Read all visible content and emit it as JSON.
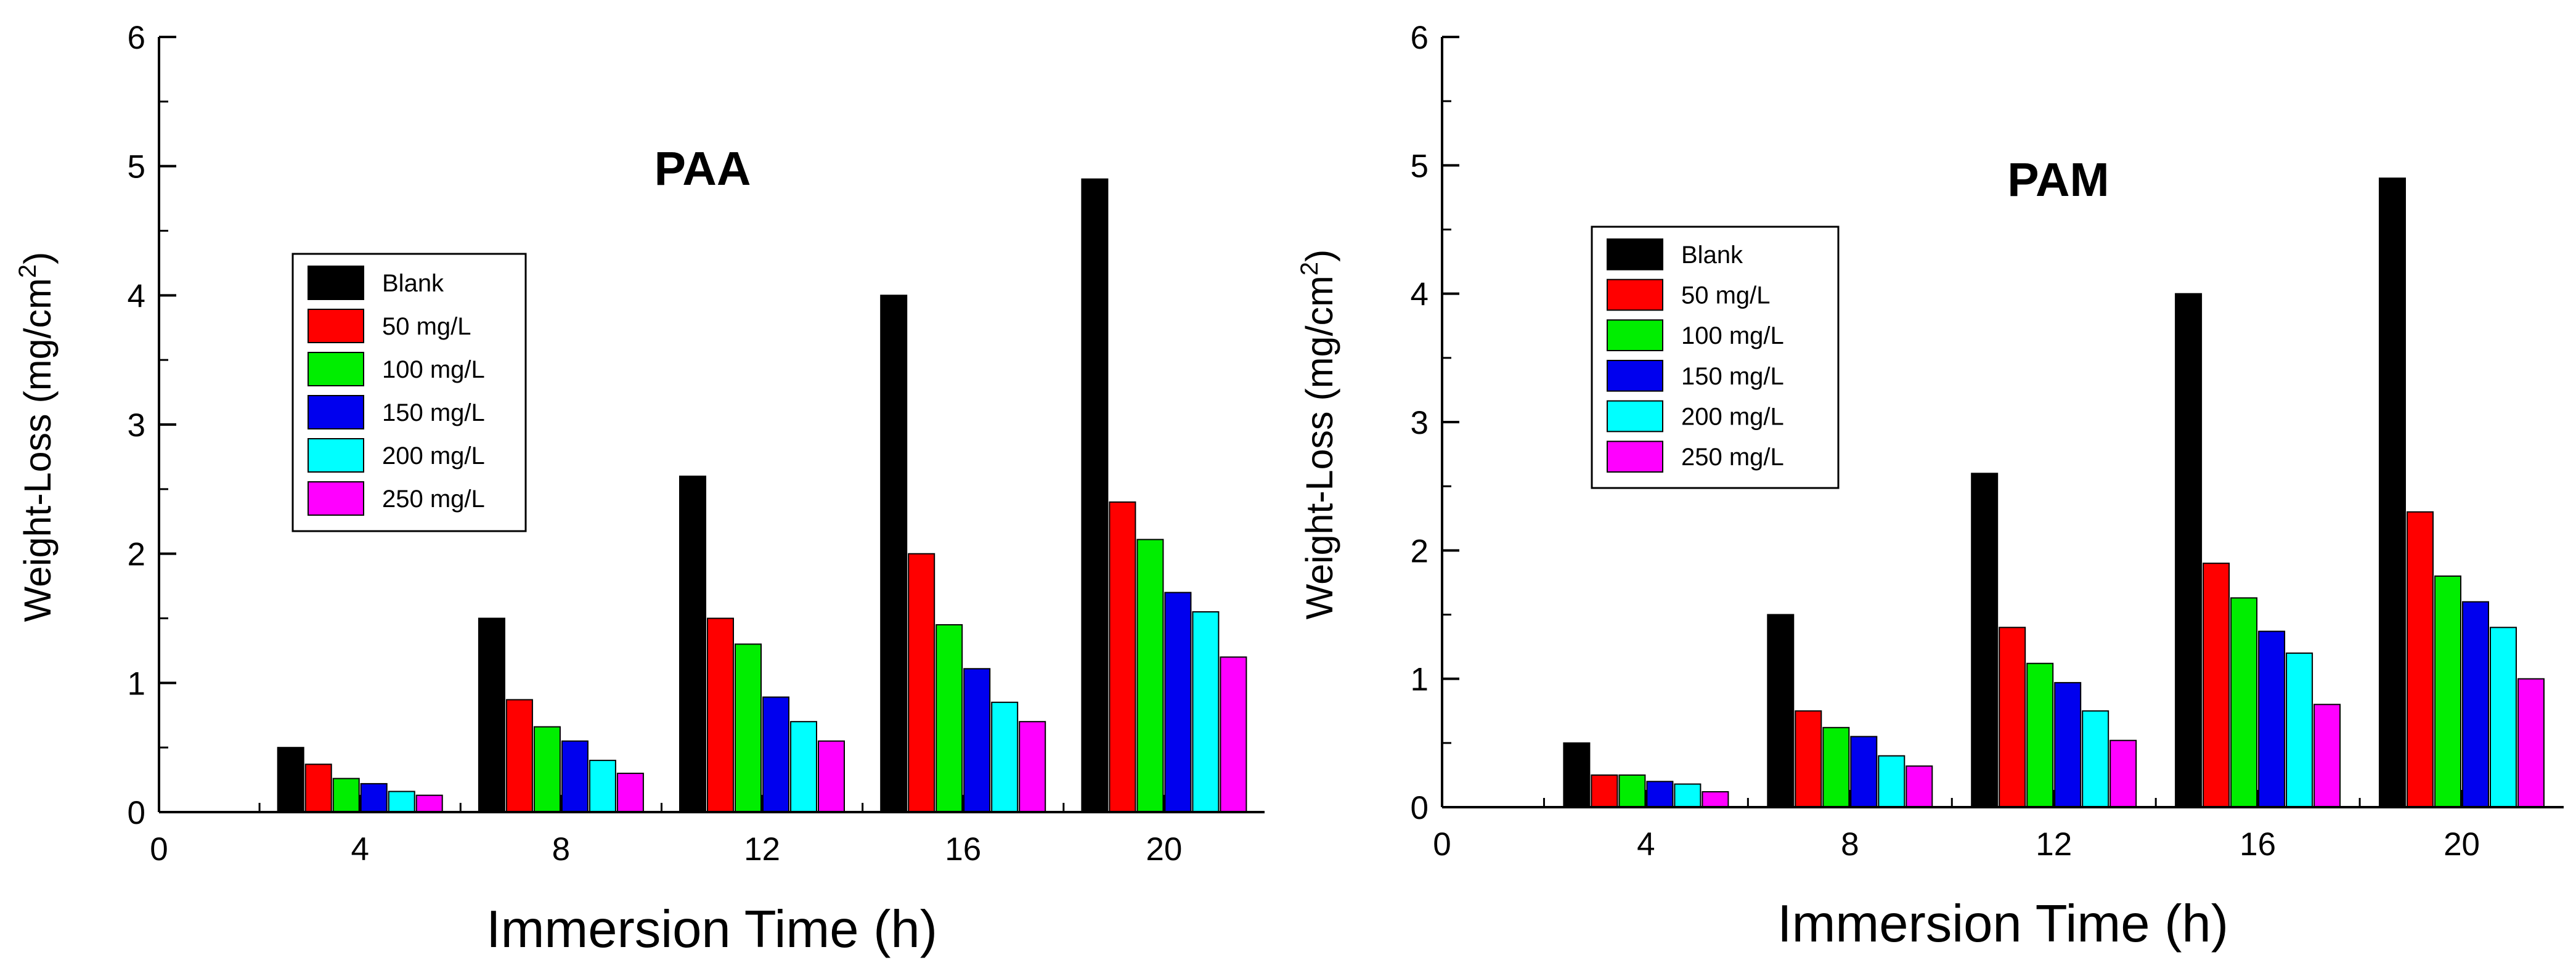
{
  "chart_data": [
    {
      "type": "bar",
      "title": "PAA",
      "xlabel": "Immersion Time (h)",
      "ylabel": "Weight-Loss (mg/cm",
      "ylabel_sup": "2",
      "ylabel_close": ")",
      "xlim": [
        0,
        22
      ],
      "ylim": [
        0,
        6
      ],
      "x_ticks": [
        0,
        4,
        8,
        12,
        16,
        20
      ],
      "y_ticks": [
        0,
        1,
        2,
        3,
        4,
        5,
        6
      ],
      "categories": [
        4,
        8,
        12,
        16,
        20
      ],
      "legend_position": "center-left",
      "grid": false,
      "series": [
        {
          "name": "Blank",
          "color": "#000000",
          "values": [
            0.5,
            1.5,
            2.6,
            4.0,
            4.9
          ]
        },
        {
          "name": "50 mg/L",
          "color": "#ff0000",
          "values": [
            0.37,
            0.87,
            1.5,
            2.0,
            2.4
          ]
        },
        {
          "name": "100 mg/L",
          "color": "#00ee00",
          "values": [
            0.26,
            0.66,
            1.3,
            1.45,
            2.11
          ]
        },
        {
          "name": "150 mg/L",
          "color": "#0000ee",
          "values": [
            0.22,
            0.55,
            0.89,
            1.11,
            1.7
          ]
        },
        {
          "name": "200 mg/L",
          "color": "#00ffff",
          "values": [
            0.16,
            0.4,
            0.7,
            0.85,
            1.55
          ]
        },
        {
          "name": "250 mg/L",
          "color": "#ff00ff",
          "values": [
            0.13,
            0.3,
            0.55,
            0.7,
            1.2
          ]
        }
      ]
    },
    {
      "type": "bar",
      "title": "PAM",
      "xlabel": "Immersion Time (h)",
      "ylabel": "Weight-Loss (mg/cm",
      "ylabel_sup": "2",
      "ylabel_close": ")",
      "xlim": [
        0,
        22
      ],
      "ylim": [
        0,
        6
      ],
      "x_ticks": [
        0,
        4,
        8,
        12,
        16,
        20
      ],
      "y_ticks": [
        0,
        1,
        2,
        3,
        4,
        5,
        6
      ],
      "categories": [
        4,
        8,
        12,
        16,
        20
      ],
      "legend_position": "top-left",
      "grid": false,
      "series": [
        {
          "name": "Blank",
          "color": "#000000",
          "values": [
            0.5,
            1.5,
            2.6,
            4.0,
            4.9
          ]
        },
        {
          "name": "50 mg/L",
          "color": "#ff0000",
          "values": [
            0.25,
            0.75,
            1.4,
            1.9,
            2.3
          ]
        },
        {
          "name": "100 mg/L",
          "color": "#00ee00",
          "values": [
            0.25,
            0.62,
            1.12,
            1.63,
            1.8
          ]
        },
        {
          "name": "150 mg/L",
          "color": "#0000ee",
          "values": [
            0.2,
            0.55,
            0.97,
            1.37,
            1.6
          ]
        },
        {
          "name": "200 mg/L",
          "color": "#00ffff",
          "values": [
            0.18,
            0.4,
            0.75,
            1.2,
            1.4
          ]
        },
        {
          "name": "250 mg/L",
          "color": "#ff00ff",
          "values": [
            0.12,
            0.32,
            0.52,
            0.8,
            1.0
          ]
        }
      ]
    }
  ]
}
